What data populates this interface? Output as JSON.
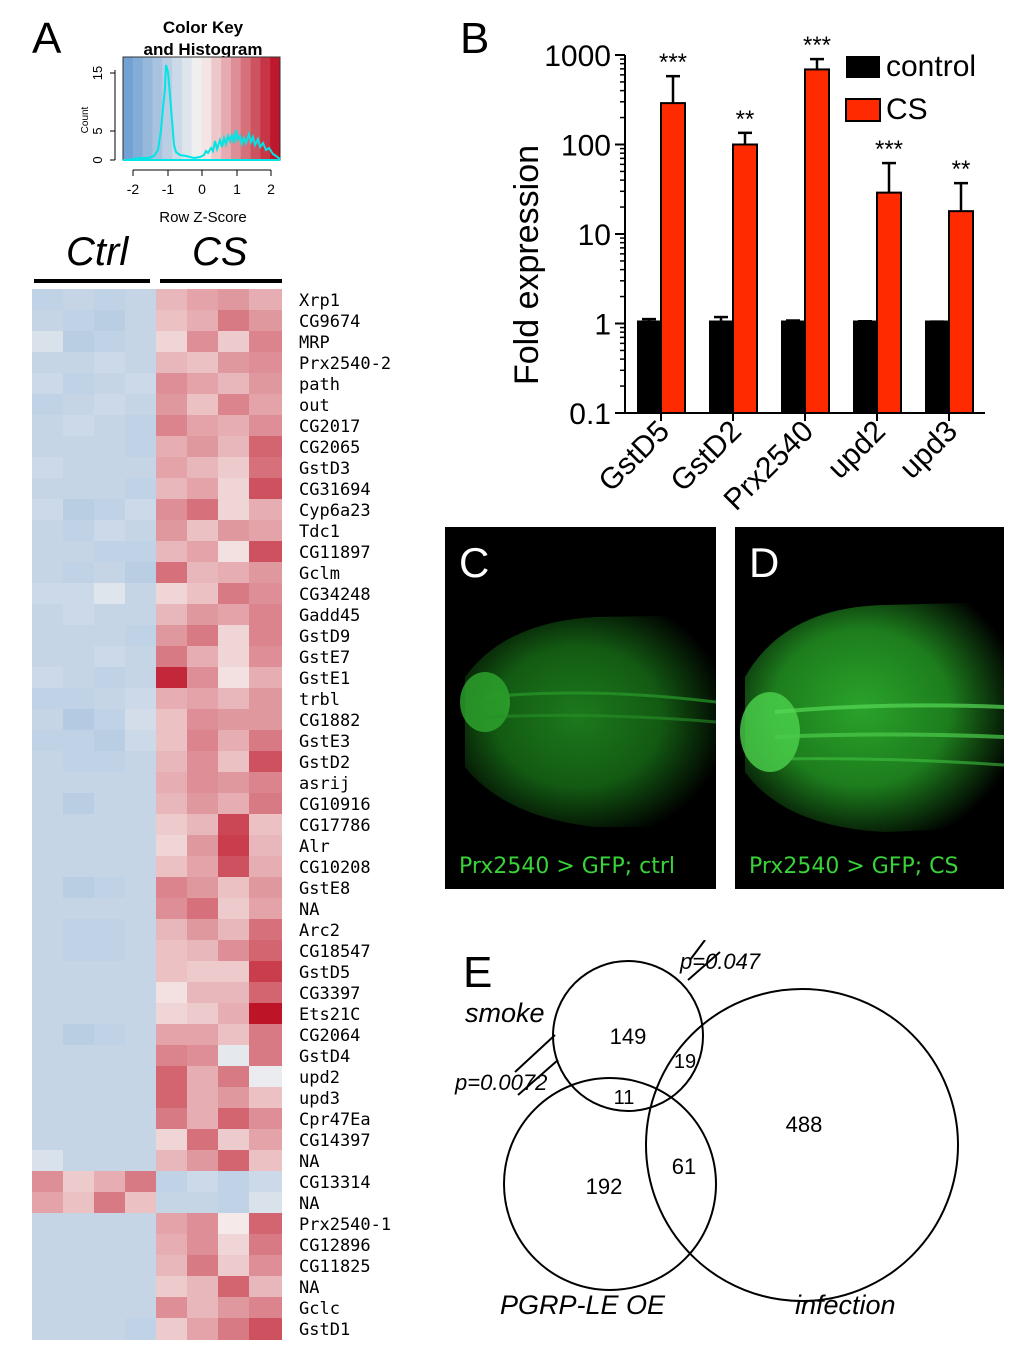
{
  "panels": {
    "a": {
      "letter": "A",
      "color_key_title_1": "Color Key",
      "color_key_title_2": "and Histogram",
      "count_label": "Count",
      "count_ticks": [
        "0",
        "5",
        "15"
      ],
      "zscore_ticks": [
        "-2",
        "-1",
        "0",
        "1",
        "2"
      ],
      "xlabel": "Row Z-Score",
      "group_ctrl": "Ctrl",
      "group_cs": "CS",
      "genes": [
        "Xrp1",
        "CG9674",
        "MRP",
        "Prx2540-2",
        "path",
        "out",
        "CG2017",
        "CG2065",
        "GstD3",
        "CG31694",
        "Cyp6a23",
        "Tdc1",
        "CG11897",
        "Gclm",
        "CG34248",
        "Gadd45",
        "GstD9",
        "GstE7",
        "GstE1",
        "trbl",
        "CG1882",
        "GstE3",
        "GstD2",
        "asrij",
        "CG10916",
        "CG17786",
        "Alr",
        "CG10208",
        "GstE8",
        "NA",
        "Arc2",
        "CG18547",
        "GstD5",
        "CG3397",
        "Ets21C",
        "CG2064",
        "GstD4",
        "upd2",
        "upd3",
        "Cpr47Ea",
        "CG14397",
        "NA",
        "CG13314",
        "NA",
        "Prx2540-1",
        "CG12896",
        "CG11825",
        "NA",
        "Gclc",
        "GstD1"
      ],
      "heatmap": [
        [
          -0.9,
          -0.8,
          -0.9,
          -0.8,
          0.6,
          0.8,
          0.9,
          0.7
        ],
        [
          -0.8,
          -0.9,
          -1.0,
          -0.8,
          0.5,
          0.7,
          1.2,
          0.9
        ],
        [
          -0.5,
          -1.0,
          -0.9,
          -0.8,
          0.3,
          1.0,
          0.4,
          1.1
        ],
        [
          -0.8,
          -0.8,
          -0.7,
          -0.8,
          0.6,
          0.5,
          0.9,
          1.0
        ],
        [
          -0.7,
          -0.9,
          -0.8,
          -0.7,
          1.0,
          0.8,
          0.6,
          0.9
        ],
        [
          -0.9,
          -0.8,
          -0.7,
          -0.8,
          0.9,
          0.5,
          1.1,
          0.8
        ],
        [
          -0.8,
          -0.7,
          -0.8,
          -0.9,
          1.1,
          0.8,
          0.7,
          1.0
        ],
        [
          -0.8,
          -0.8,
          -0.8,
          -0.9,
          0.7,
          0.9,
          0.6,
          1.4
        ],
        [
          -0.7,
          -0.8,
          -0.8,
          -0.8,
          0.8,
          0.6,
          0.4,
          1.3
        ],
        [
          -0.8,
          -0.8,
          -0.8,
          -0.9,
          0.6,
          0.8,
          0.3,
          1.6
        ],
        [
          -0.7,
          -1.0,
          -0.9,
          -0.7,
          1.0,
          1.3,
          0.3,
          0.7
        ],
        [
          -0.8,
          -0.9,
          -0.7,
          -0.8,
          0.9,
          0.5,
          0.9,
          0.8
        ],
        [
          -0.8,
          -0.8,
          -0.9,
          -0.9,
          0.6,
          0.8,
          0.2,
          1.6
        ],
        [
          -0.8,
          -0.9,
          -0.8,
          -1.0,
          1.3,
          0.6,
          0.7,
          0.9
        ],
        [
          -0.7,
          -0.7,
          -0.4,
          -0.8,
          0.3,
          0.5,
          1.2,
          1.0
        ],
        [
          -0.8,
          -0.7,
          -0.8,
          -0.8,
          0.6,
          0.9,
          0.8,
          1.1
        ],
        [
          -0.8,
          -0.8,
          -0.8,
          -0.9,
          0.9,
          1.2,
          0.3,
          1.1
        ],
        [
          -0.8,
          -0.8,
          -0.7,
          -0.8,
          1.2,
          0.7,
          0.3,
          1.0
        ],
        [
          -0.7,
          -0.8,
          -0.9,
          -0.8,
          2.0,
          1.0,
          0.2,
          0.7
        ],
        [
          -0.9,
          -0.9,
          -0.8,
          -0.7,
          0.7,
          0.8,
          0.6,
          0.9
        ],
        [
          -0.8,
          -1.1,
          -0.9,
          -0.6,
          0.5,
          1.0,
          0.9,
          0.9
        ],
        [
          -0.9,
          -0.9,
          -1.0,
          -0.7,
          0.5,
          1.1,
          0.7,
          1.2
        ],
        [
          -0.8,
          -0.9,
          -0.9,
          -0.8,
          0.6,
          1.0,
          0.5,
          1.6
        ],
        [
          -0.8,
          -0.8,
          -0.8,
          -0.8,
          0.7,
          1.0,
          0.9,
          1.1
        ],
        [
          -0.8,
          -1.0,
          -0.8,
          -0.8,
          0.6,
          0.9,
          0.7,
          1.2
        ],
        [
          -0.8,
          -0.8,
          -0.8,
          -0.8,
          0.4,
          0.6,
          1.7,
          0.5
        ],
        [
          -0.8,
          -0.8,
          -0.8,
          -0.8,
          0.3,
          0.9,
          1.8,
          0.6
        ],
        [
          -0.8,
          -0.8,
          -0.8,
          -0.8,
          0.5,
          0.8,
          1.6,
          0.7
        ],
        [
          -0.8,
          -1.0,
          -0.9,
          -0.8,
          1.1,
          0.9,
          0.5,
          0.9
        ],
        [
          -0.8,
          -0.8,
          -0.8,
          -0.8,
          1.0,
          1.3,
          0.4,
          0.8
        ],
        [
          -0.8,
          -0.9,
          -0.9,
          -0.8,
          0.6,
          0.9,
          0.6,
          1.3
        ],
        [
          -0.8,
          -0.9,
          -0.9,
          -0.8,
          0.5,
          0.6,
          1.0,
          1.4
        ],
        [
          -0.8,
          -0.8,
          -0.8,
          -0.8,
          0.5,
          0.4,
          0.4,
          1.8
        ],
        [
          -0.8,
          -0.8,
          -0.8,
          -0.8,
          0.2,
          0.6,
          0.6,
          1.4
        ],
        [
          -0.8,
          -0.8,
          -0.8,
          -0.8,
          0.3,
          0.4,
          0.7,
          2.2
        ],
        [
          -0.8,
          -1.0,
          -0.9,
          -0.8,
          0.8,
          0.8,
          0.5,
          1.2
        ],
        [
          -0.8,
          -0.8,
          -0.8,
          -0.8,
          1.1,
          1.0,
          -0.3,
          1.2
        ],
        [
          -0.8,
          -0.8,
          -0.8,
          -0.8,
          1.4,
          0.7,
          1.2,
          -0.2
        ],
        [
          -0.8,
          -0.8,
          -0.8,
          -0.8,
          1.4,
          0.7,
          0.9,
          0.5
        ],
        [
          -0.8,
          -0.8,
          -0.8,
          -0.8,
          1.2,
          0.7,
          1.4,
          1.0
        ],
        [
          -0.8,
          -0.8,
          -0.8,
          -0.8,
          0.3,
          1.3,
          0.4,
          0.8
        ],
        [
          -0.5,
          -0.8,
          -0.8,
          -0.8,
          0.6,
          0.9,
          1.4,
          0.5
        ],
        [
          1.0,
          0.4,
          0.7,
          1.2,
          -0.9,
          -0.7,
          -0.9,
          -0.7
        ],
        [
          0.8,
          0.5,
          1.2,
          0.5,
          -0.8,
          -0.8,
          -0.9,
          -0.5
        ],
        [
          -0.8,
          -0.8,
          -0.8,
          -0.8,
          0.8,
          1.0,
          0.1,
          1.4
        ],
        [
          -0.8,
          -0.8,
          -0.8,
          -0.8,
          0.7,
          1.0,
          0.3,
          1.2
        ],
        [
          -0.8,
          -0.8,
          -0.8,
          -0.8,
          0.6,
          1.2,
          0.4,
          1.0
        ],
        [
          -0.8,
          -0.8,
          -0.8,
          -0.8,
          0.4,
          0.6,
          1.4,
          0.6
        ],
        [
          -0.8,
          -0.8,
          -0.8,
          -0.8,
          1.0,
          0.6,
          0.9,
          1.1
        ],
        [
          -0.8,
          -0.8,
          -0.8,
          -0.9,
          0.4,
          0.8,
          1.2,
          1.6
        ]
      ]
    },
    "b": {
      "letter": "B",
      "ylabel": "Fold expression",
      "legend": [
        "control",
        "CS"
      ],
      "colors": {
        "control": "#000000",
        "cs": "#ff2a00"
      }
    },
    "c": {
      "letter": "C",
      "caption": "Prx2540 > GFP; ctrl"
    },
    "d": {
      "letter": "D",
      "caption": "Prx2540 > GFP; CS"
    },
    "e": {
      "letter": "E",
      "labels": {
        "smoke": "smoke",
        "pgrp": "PGRP-LE OE",
        "infection": "infection"
      },
      "pvalues": {
        "smoke_infection": "p=0.047",
        "smoke_pgrp": "p=0.0072"
      },
      "counts": {
        "smoke_only": "149",
        "smoke_infection": "19",
        "smoke_pgrp": "11",
        "infection_only": "488",
        "pgrp_infection": "61",
        "pgrp_only": "192"
      }
    }
  },
  "chart_data": {
    "type": "bar",
    "categories": [
      "GstD5",
      "GstD2",
      "Prx2540",
      "upd2",
      "upd3"
    ],
    "yscale": "log",
    "ylim": [
      0.1,
      1000
    ],
    "yticks": [
      "0.1",
      "1",
      "10",
      "100",
      "1000"
    ],
    "ylabel": "Fold expression",
    "series": [
      {
        "name": "control",
        "values": [
          1,
          1,
          1,
          1,
          1
        ],
        "error_upper": [
          1.12,
          1.18,
          1.08,
          1.06,
          1.05
        ]
      },
      {
        "name": "CS",
        "values": [
          290,
          100,
          690,
          29,
          18
        ],
        "error_upper": [
          580,
          135,
          900,
          62,
          37
        ]
      }
    ],
    "significance": [
      "***",
      "**",
      "***",
      "***",
      "**"
    ]
  }
}
